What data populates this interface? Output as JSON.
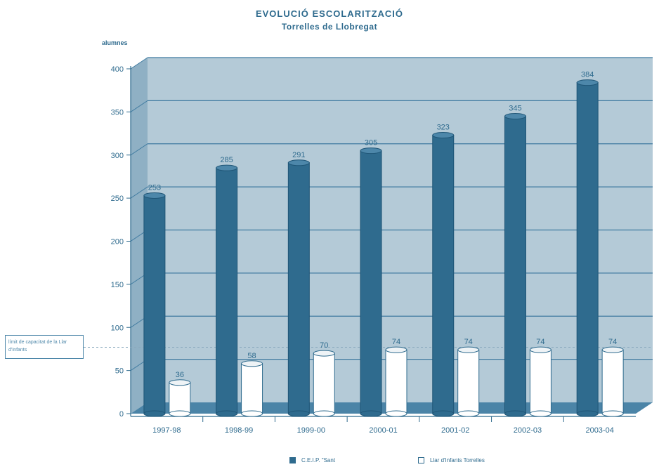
{
  "chart_data": {
    "type": "bar",
    "title": "EVOLUCIÓ ESCOLARITZACIÓ",
    "subtitle": "Torrelles de Llobregat",
    "ylabel": "alumnes",
    "categories": [
      "1997-98",
      "1998-99",
      "1999-00",
      "2000-01",
      "2001-02",
      "2002-03",
      "2003-04"
    ],
    "ylim": [
      0,
      400
    ],
    "yticks": [
      0,
      50,
      100,
      150,
      200,
      250,
      300,
      350,
      400
    ],
    "series": [
      {
        "name": "C.E.I.P. \"Sant",
        "values": [
          253,
          285,
          291,
          305,
          323,
          345,
          384
        ],
        "color": "#2f6b8e"
      },
      {
        "name": "Llar d'Infants Torrelles",
        "values": [
          36,
          58,
          70,
          74,
          74,
          74,
          74
        ],
        "color": "#ffffff"
      }
    ],
    "reference_line": {
      "value": 77,
      "label": "límit de capacitat de la Llar d'Infants"
    },
    "grid": true,
    "legend_position": "bottom"
  },
  "colors": {
    "accent": "#2f6b8e",
    "back_wall": "#b4cad7",
    "floor": "#4b84a7",
    "grid": "#3f7aa0"
  }
}
